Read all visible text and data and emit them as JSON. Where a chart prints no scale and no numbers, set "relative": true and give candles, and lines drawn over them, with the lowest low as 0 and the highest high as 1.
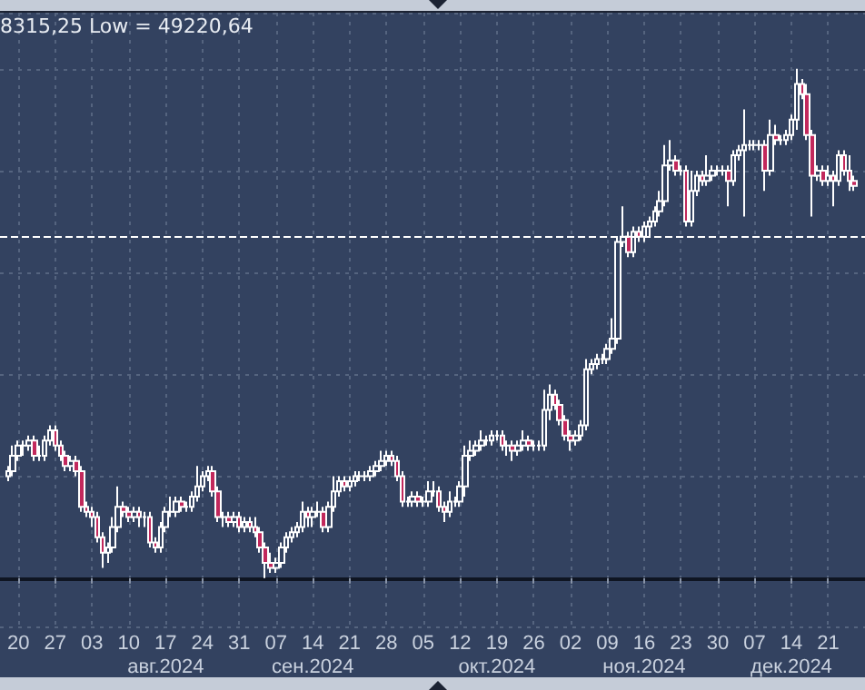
{
  "chart_data": {
    "type": "candlestick",
    "relative": true,
    "color": "#ffffff",
    "grid": true,
    "annotations": [
      "8315,25 Low = 49220,64"
    ],
    "xlim": [
      "2024-07-16T12:00",
      "2024-12-28"
    ],
    "x2lim": [
      "2024-07-16T12:00",
      "2024-12-28"
    ],
    "x2ticks": [
      {
        "value": "2024-08-17",
        "label": "авг.2024"
      },
      {
        "value": "2024-09-14",
        "label": "сен.2024"
      },
      {
        "value": "2024-10-19",
        "label": "окт.2024"
      },
      {
        "value": "2024-11-16",
        "label": "ноя.2024"
      },
      {
        "value": "2024-12-14",
        "label": "дек.2024"
      }
    ],
    "xticks": [
      {
        "value": "2024-07-20",
        "label": "20"
      },
      {
        "value": "2024-07-27",
        "label": "27"
      },
      {
        "value": "2024-08-03",
        "label": "03"
      },
      {
        "value": "2024-08-10",
        "label": "10"
      },
      {
        "value": "2024-08-17",
        "label": "17"
      },
      {
        "value": "2024-08-24",
        "label": "24"
      },
      {
        "value": "2024-08-31",
        "label": "31"
      },
      {
        "value": "2024-09-07",
        "label": "07"
      },
      {
        "value": "2024-09-14",
        "label": "14"
      },
      {
        "value": "2024-09-21",
        "label": "21"
      },
      {
        "value": "2024-09-28",
        "label": "28"
      },
      {
        "value": "2024-10-05",
        "label": "05"
      },
      {
        "value": "2024-10-12",
        "label": "12"
      },
      {
        "value": "2024-10-19",
        "label": "19"
      },
      {
        "value": "2024-10-26",
        "label": "26"
      },
      {
        "value": "2024-11-02",
        "label": "02"
      },
      {
        "value": "2024-11-09",
        "label": "09"
      },
      {
        "value": "2024-11-16",
        "label": "16"
      },
      {
        "value": "2024-11-23",
        "label": "23"
      },
      {
        "value": "2024-11-30",
        "label": "30"
      },
      {
        "value": "2024-12-07",
        "label": "07"
      },
      {
        "value": "2024-12-14",
        "label": "14"
      },
      {
        "value": "2024-12-21",
        "label": "21"
      }
    ],
    "ref_lines": [
      {
        "axis": "y",
        "value": 0.67,
        "label": null,
        "color": "#ffffff",
        "line_style": "dashed"
      }
    ],
    "x": [
      "2024-07-18",
      "2024-07-19",
      "2024-07-20",
      "2024-07-21",
      "2024-07-22",
      "2024-07-23",
      "2024-07-24",
      "2024-07-25",
      "2024-07-26",
      "2024-07-27",
      "2024-07-28",
      "2024-07-29",
      "2024-07-30",
      "2024-07-31",
      "2024-08-01",
      "2024-08-02",
      "2024-08-03",
      "2024-08-04",
      "2024-08-05",
      "2024-08-06",
      "2024-08-07",
      "2024-08-08",
      "2024-08-09",
      "2024-08-10",
      "2024-08-11",
      "2024-08-12",
      "2024-08-13",
      "2024-08-14",
      "2024-08-15",
      "2024-08-16",
      "2024-08-17",
      "2024-08-18",
      "2024-08-19",
      "2024-08-20",
      "2024-08-21",
      "2024-08-22",
      "2024-08-23",
      "2024-08-24",
      "2024-08-25",
      "2024-08-26",
      "2024-08-27",
      "2024-08-28",
      "2024-08-29",
      "2024-08-30",
      "2024-08-31",
      "2024-09-01",
      "2024-09-02",
      "2024-09-03",
      "2024-09-04",
      "2024-09-05",
      "2024-09-06",
      "2024-09-07",
      "2024-09-08",
      "2024-09-09",
      "2024-09-10",
      "2024-09-11",
      "2024-09-12",
      "2024-09-13",
      "2024-09-14",
      "2024-09-15",
      "2024-09-16",
      "2024-09-17",
      "2024-09-18",
      "2024-09-19",
      "2024-09-20",
      "2024-09-21",
      "2024-09-22",
      "2024-09-23",
      "2024-09-24",
      "2024-09-25",
      "2024-09-26",
      "2024-09-27",
      "2024-09-28",
      "2024-09-29",
      "2024-09-30",
      "2024-10-01",
      "2024-10-02",
      "2024-10-03",
      "2024-10-04",
      "2024-10-05",
      "2024-10-06",
      "2024-10-07",
      "2024-10-08",
      "2024-10-09",
      "2024-10-10",
      "2024-10-11",
      "2024-10-12",
      "2024-10-13",
      "2024-10-14",
      "2024-10-15",
      "2024-10-16",
      "2024-10-17",
      "2024-10-18",
      "2024-10-19",
      "2024-10-20",
      "2024-10-21",
      "2024-10-22",
      "2024-10-23",
      "2024-10-24",
      "2024-10-25",
      "2024-10-26",
      "2024-10-27",
      "2024-10-28",
      "2024-10-29",
      "2024-10-30",
      "2024-10-31",
      "2024-11-01",
      "2024-11-02",
      "2024-11-03",
      "2024-11-04",
      "2024-11-05",
      "2024-11-06",
      "2024-11-07",
      "2024-11-08",
      "2024-11-09",
      "2024-11-10",
      "2024-11-11",
      "2024-11-12",
      "2024-11-13",
      "2024-11-14",
      "2024-11-15",
      "2024-11-16",
      "2024-11-17",
      "2024-11-18",
      "2024-11-19",
      "2024-11-20",
      "2024-11-21",
      "2024-11-22",
      "2024-11-23",
      "2024-11-24",
      "2024-11-25",
      "2024-11-26",
      "2024-11-27",
      "2024-11-28",
      "2024-11-29",
      "2024-11-30",
      "2024-12-01",
      "2024-12-02",
      "2024-12-03",
      "2024-12-04",
      "2024-12-05",
      "2024-12-06",
      "2024-12-07",
      "2024-12-08",
      "2024-12-09",
      "2024-12-10",
      "2024-12-11",
      "2024-12-12",
      "2024-12-13",
      "2024-12-14",
      "2024-12-15",
      "2024-12-16",
      "2024-12-17",
      "2024-12-18",
      "2024-12-19",
      "2024-12-20",
      "2024-12-21",
      "2024-12-22",
      "2024-12-23",
      "2024-12-24",
      "2024-12-25",
      "2024-12-26"
    ],
    "ohlc": [
      [
        0.2,
        0.22,
        0.19,
        0.21
      ],
      [
        0.21,
        0.26,
        0.2,
        0.24
      ],
      [
        0.24,
        0.27,
        0.23,
        0.26
      ],
      [
        0.26,
        0.27,
        0.24,
        0.26
      ],
      [
        0.26,
        0.28,
        0.25,
        0.27
      ],
      [
        0.27,
        0.28,
        0.23,
        0.24
      ],
      [
        0.24,
        0.26,
        0.23,
        0.24
      ],
      [
        0.24,
        0.28,
        0.23,
        0.27
      ],
      [
        0.27,
        0.3,
        0.26,
        0.29
      ],
      [
        0.29,
        0.3,
        0.25,
        0.26
      ],
      [
        0.26,
        0.27,
        0.23,
        0.24
      ],
      [
        0.24,
        0.25,
        0.21,
        0.22
      ],
      [
        0.22,
        0.24,
        0.21,
        0.23
      ],
      [
        0.23,
        0.24,
        0.2,
        0.21
      ],
      [
        0.21,
        0.22,
        0.13,
        0.14
      ],
      [
        0.14,
        0.15,
        0.12,
        0.13
      ],
      [
        0.13,
        0.14,
        0.1,
        0.12
      ],
      [
        0.12,
        0.13,
        0.07,
        0.08
      ],
      [
        0.08,
        0.09,
        0.02,
        0.05
      ],
      [
        0.05,
        0.07,
        0.03,
        0.06
      ],
      [
        0.06,
        0.12,
        0.05,
        0.1
      ],
      [
        0.1,
        0.18,
        0.09,
        0.14
      ],
      [
        0.14,
        0.15,
        0.12,
        0.13
      ],
      [
        0.13,
        0.14,
        0.11,
        0.12
      ],
      [
        0.12,
        0.14,
        0.11,
        0.13
      ],
      [
        0.13,
        0.14,
        0.1,
        0.12
      ],
      [
        0.12,
        0.13,
        0.1,
        0.12
      ],
      [
        0.12,
        0.13,
        0.06,
        0.07
      ],
      [
        0.07,
        0.08,
        0.05,
        0.06
      ],
      [
        0.06,
        0.11,
        0.05,
        0.1
      ],
      [
        0.1,
        0.14,
        0.09,
        0.13
      ],
      [
        0.13,
        0.16,
        0.12,
        0.13
      ],
      [
        0.13,
        0.16,
        0.12,
        0.15
      ],
      [
        0.15,
        0.16,
        0.13,
        0.14
      ],
      [
        0.14,
        0.15,
        0.13,
        0.14
      ],
      [
        0.14,
        0.17,
        0.13,
        0.16
      ],
      [
        0.16,
        0.22,
        0.15,
        0.18
      ],
      [
        0.18,
        0.21,
        0.17,
        0.2
      ],
      [
        0.2,
        0.22,
        0.19,
        0.21
      ],
      [
        0.21,
        0.22,
        0.16,
        0.17
      ],
      [
        0.17,
        0.18,
        0.11,
        0.12
      ],
      [
        0.12,
        0.13,
        0.1,
        0.12
      ],
      [
        0.12,
        0.13,
        0.1,
        0.11
      ],
      [
        0.11,
        0.13,
        0.1,
        0.12
      ],
      [
        0.12,
        0.13,
        0.09,
        0.1
      ],
      [
        0.1,
        0.12,
        0.09,
        0.11
      ],
      [
        0.11,
        0.12,
        0.09,
        0.1
      ],
      [
        0.1,
        0.12,
        0.08,
        0.09
      ],
      [
        0.09,
        0.1,
        0.05,
        0.06
      ],
      [
        0.06,
        0.07,
        0,
        0.03
      ],
      [
        0.03,
        0.05,
        0.01,
        0.02
      ],
      [
        0.02,
        0.04,
        0.01,
        0.03
      ],
      [
        0.03,
        0.07,
        0.02,
        0.06
      ],
      [
        0.06,
        0.09,
        0.05,
        0.08
      ],
      [
        0.08,
        0.1,
        0.07,
        0.09
      ],
      [
        0.09,
        0.11,
        0.08,
        0.1
      ],
      [
        0.1,
        0.15,
        0.09,
        0.13
      ],
      [
        0.13,
        0.14,
        0.1,
        0.12
      ],
      [
        0.12,
        0.14,
        0.1,
        0.13
      ],
      [
        0.13,
        0.15,
        0.12,
        0.13
      ],
      [
        0.13,
        0.14,
        0.09,
        0.1
      ],
      [
        0.1,
        0.15,
        0.09,
        0.14
      ],
      [
        0.14,
        0.2,
        0.13,
        0.17
      ],
      [
        0.17,
        0.2,
        0.16,
        0.19
      ],
      [
        0.19,
        0.2,
        0.17,
        0.18
      ],
      [
        0.18,
        0.2,
        0.17,
        0.19
      ],
      [
        0.19,
        0.21,
        0.18,
        0.2
      ],
      [
        0.2,
        0.21,
        0.19,
        0.2
      ],
      [
        0.2,
        0.21,
        0.19,
        0.2
      ],
      [
        0.2,
        0.22,
        0.19,
        0.21
      ],
      [
        0.21,
        0.23,
        0.2,
        0.22
      ],
      [
        0.22,
        0.25,
        0.21,
        0.23
      ],
      [
        0.23,
        0.25,
        0.22,
        0.24
      ],
      [
        0.24,
        0.25,
        0.22,
        0.23
      ],
      [
        0.23,
        0.24,
        0.19,
        0.2
      ],
      [
        0.2,
        0.21,
        0.14,
        0.15
      ],
      [
        0.15,
        0.16,
        0.14,
        0.15
      ],
      [
        0.15,
        0.17,
        0.14,
        0.16
      ],
      [
        0.16,
        0.17,
        0.14,
        0.15
      ],
      [
        0.15,
        0.16,
        0.14,
        0.15
      ],
      [
        0.15,
        0.19,
        0.14,
        0.17
      ],
      [
        0.17,
        0.19,
        0.16,
        0.17
      ],
      [
        0.17,
        0.18,
        0.13,
        0.14
      ],
      [
        0.14,
        0.15,
        0.11,
        0.13
      ],
      [
        0.13,
        0.17,
        0.12,
        0.15
      ],
      [
        0.15,
        0.16,
        0.14,
        0.15
      ],
      [
        0.15,
        0.19,
        0.14,
        0.18
      ],
      [
        0.18,
        0.26,
        0.16,
        0.24
      ],
      [
        0.24,
        0.27,
        0.23,
        0.25
      ],
      [
        0.25,
        0.27,
        0.24,
        0.26
      ],
      [
        0.26,
        0.29,
        0.25,
        0.27
      ],
      [
        0.27,
        0.28,
        0.26,
        0.27
      ],
      [
        0.27,
        0.29,
        0.26,
        0.28
      ],
      [
        0.28,
        0.29,
        0.27,
        0.28
      ],
      [
        0.28,
        0.29,
        0.25,
        0.26
      ],
      [
        0.26,
        0.27,
        0.24,
        0.26
      ],
      [
        0.26,
        0.27,
        0.23,
        0.25
      ],
      [
        0.25,
        0.27,
        0.24,
        0.26
      ],
      [
        0.26,
        0.29,
        0.25,
        0.27
      ],
      [
        0.27,
        0.28,
        0.25,
        0.26
      ],
      [
        0.26,
        0.27,
        0.25,
        0.26
      ],
      [
        0.26,
        0.27,
        0.25,
        0.26
      ],
      [
        0.26,
        0.37,
        0.25,
        0.33
      ],
      [
        0.33,
        0.38,
        0.31,
        0.36
      ],
      [
        0.36,
        0.37,
        0.33,
        0.34
      ],
      [
        0.34,
        0.35,
        0.3,
        0.31
      ],
      [
        0.31,
        0.32,
        0.27,
        0.28
      ],
      [
        0.28,
        0.29,
        0.25,
        0.27
      ],
      [
        0.27,
        0.29,
        0.26,
        0.28
      ],
      [
        0.28,
        0.31,
        0.27,
        0.3
      ],
      [
        0.3,
        0.43,
        0.29,
        0.41
      ],
      [
        0.41,
        0.43,
        0.4,
        0.42
      ],
      [
        0.42,
        0.44,
        0.41,
        0.43
      ],
      [
        0.43,
        0.44,
        0.42,
        0.43
      ],
      [
        0.43,
        0.46,
        0.42,
        0.45
      ],
      [
        0.45,
        0.51,
        0.44,
        0.47
      ],
      [
        0.47,
        0.67,
        0.46,
        0.66
      ],
      [
        0.66,
        0.73,
        0.65,
        0.67
      ],
      [
        0.67,
        0.68,
        0.63,
        0.64
      ],
      [
        0.64,
        0.69,
        0.63,
        0.68
      ],
      [
        0.68,
        0.69,
        0.66,
        0.67
      ],
      [
        0.67,
        0.7,
        0.66,
        0.69
      ],
      [
        0.69,
        0.71,
        0.67,
        0.7
      ],
      [
        0.7,
        0.73,
        0.69,
        0.72
      ],
      [
        0.72,
        0.76,
        0.71,
        0.74
      ],
      [
        0.74,
        0.85,
        0.73,
        0.81
      ],
      [
        0.81,
        0.86,
        0.8,
        0.82
      ],
      [
        0.82,
        0.83,
        0.79,
        0.8
      ],
      [
        0.8,
        0.81,
        0.79,
        0.8
      ],
      [
        0.8,
        0.81,
        0.69,
        0.7
      ],
      [
        0.7,
        0.8,
        0.69,
        0.76
      ],
      [
        0.76,
        0.8,
        0.75,
        0.79
      ],
      [
        0.79,
        0.8,
        0.77,
        0.78
      ],
      [
        0.78,
        0.83,
        0.77,
        0.79
      ],
      [
        0.79,
        0.81,
        0.78,
        0.8
      ],
      [
        0.8,
        0.81,
        0.79,
        0.8
      ],
      [
        0.8,
        0.81,
        0.79,
        0.8
      ],
      [
        0.8,
        0.81,
        0.73,
        0.78
      ],
      [
        0.78,
        0.84,
        0.77,
        0.83
      ],
      [
        0.83,
        0.85,
        0.82,
        0.84
      ],
      [
        0.84,
        0.92,
        0.71,
        0.85
      ],
      [
        0.85,
        0.86,
        0.84,
        0.85
      ],
      [
        0.85,
        0.86,
        0.84,
        0.85
      ],
      [
        0.85,
        0.86,
        0.84,
        0.85
      ],
      [
        0.85,
        0.86,
        0.76,
        0.8
      ],
      [
        0.8,
        0.9,
        0.79,
        0.87
      ],
      [
        0.87,
        0.89,
        0.85,
        0.86
      ],
      [
        0.86,
        0.87,
        0.85,
        0.86
      ],
      [
        0.86,
        0.88,
        0.85,
        0.87
      ],
      [
        0.87,
        0.91,
        0.86,
        0.9
      ],
      [
        0.9,
        1,
        0.88,
        0.97
      ],
      [
        0.97,
        0.98,
        0.94,
        0.95
      ],
      [
        0.95,
        0.97,
        0.86,
        0.87
      ],
      [
        0.87,
        0.88,
        0.71,
        0.79
      ],
      [
        0.79,
        0.81,
        0.78,
        0.8
      ],
      [
        0.8,
        0.81,
        0.77,
        0.78
      ],
      [
        0.78,
        0.81,
        0.77,
        0.79
      ],
      [
        0.79,
        0.8,
        0.73,
        0.78
      ],
      [
        0.78,
        0.84,
        0.77,
        0.83
      ],
      [
        0.83,
        0.84,
        0.79,
        0.8
      ],
      [
        0.8,
        0.83,
        0.76,
        0.78
      ],
      [
        0.78,
        0.79,
        0.76,
        0.77
      ]
    ]
  }
}
